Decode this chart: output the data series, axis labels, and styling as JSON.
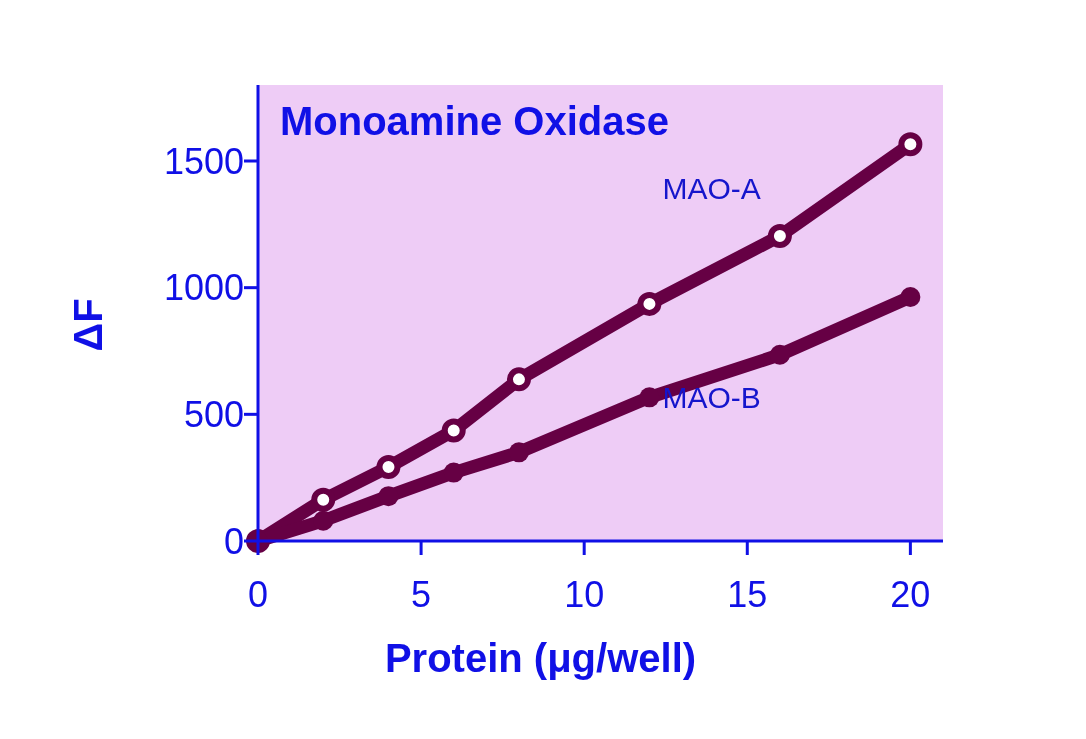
{
  "chart_data": {
    "type": "line",
    "title": "Monoamine Oxidase",
    "xlabel": "Protein (μg/well)",
    "ylabel": "ΔF",
    "xlim": [
      0,
      21
    ],
    "xticks": [
      0,
      5,
      10,
      15,
      20
    ],
    "ylim": [
      0,
      1800
    ],
    "yticks": [
      0,
      500,
      1000,
      1500
    ],
    "grid": false,
    "marker": "circle",
    "line_style": "solid",
    "series": [
      {
        "name": "MAO-A",
        "color": "#660044",
        "x": [
          0,
          2,
          4,
          6,
          8,
          12,
          16,
          20
        ],
        "values": [
          0,
          163,
          292,
          436,
          638,
          936,
          1204,
          1566
        ],
        "errors": [
          null,
          30,
          30,
          30,
          30,
          30,
          30,
          30
        ]
      },
      {
        "name": "MAO-B",
        "color": "#660044",
        "x": [
          0,
          2,
          4,
          6,
          8,
          12,
          16,
          20
        ],
        "values": [
          0,
          80,
          177,
          270,
          350,
          567,
          735,
          963
        ]
      }
    ]
  }
}
